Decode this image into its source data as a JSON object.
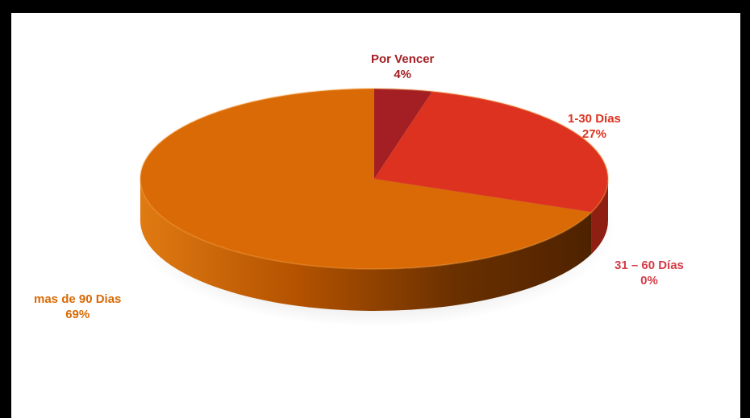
{
  "chart_data": {
    "type": "pie",
    "style": "3d",
    "categories": [
      "Por Vencer",
      "1-30 Días",
      "31 – 60 Días",
      "mas de 90 Dias"
    ],
    "values": [
      4,
      27,
      0,
      69
    ],
    "value_labels": [
      "4%",
      "27%",
      "0%",
      "69%"
    ],
    "colors": [
      "#a31f24",
      "#dc321f",
      "#d43a45",
      "#d96a06"
    ],
    "label_colors": [
      "#a31f24",
      "#dc321f",
      "#d43a45",
      "#d96a06"
    ],
    "side_colors": [
      "#6e1416",
      "#8f1f12",
      "#7a1a22",
      "#5a2a00"
    ],
    "legend": "none"
  }
}
